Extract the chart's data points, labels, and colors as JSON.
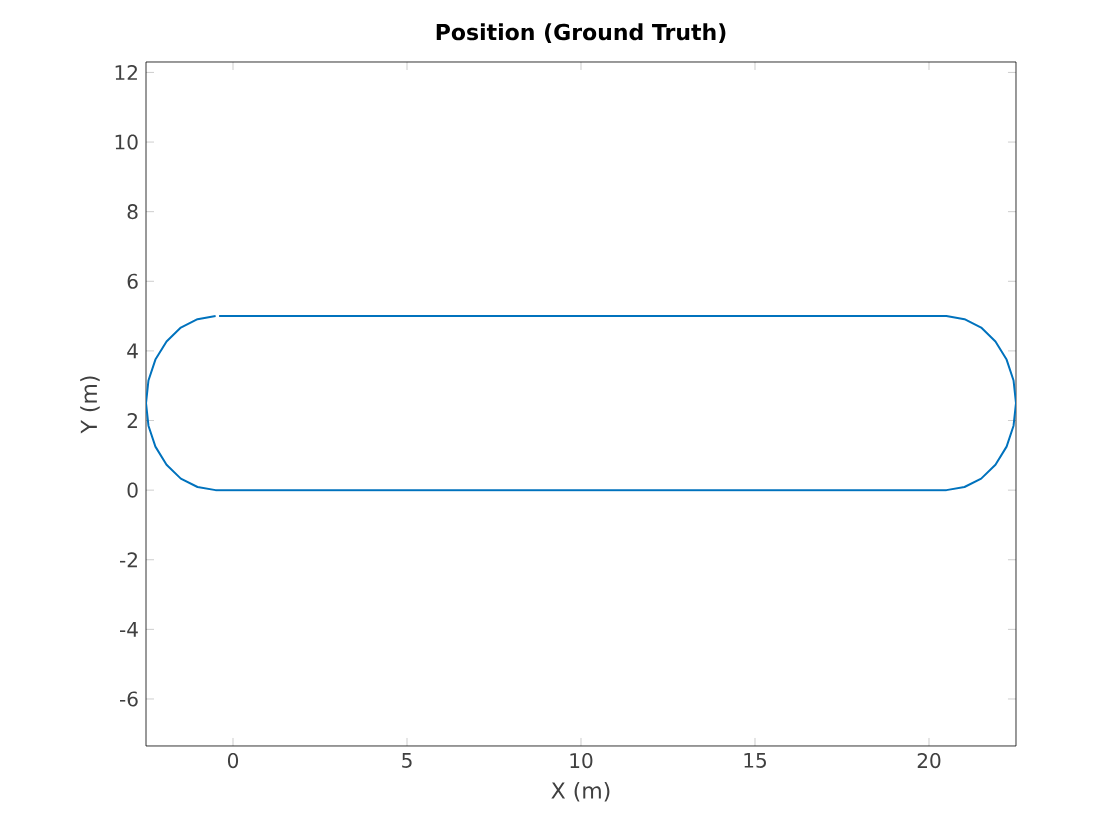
{
  "chart_data": {
    "type": "line",
    "title": "Position (Ground Truth)",
    "xlabel": "X (m)",
    "ylabel": "Y (m)",
    "xlim": [
      -2.5,
      22.5
    ],
    "ylim": [
      -7.35,
      12.3
    ],
    "xticks": [
      0,
      5,
      10,
      15,
      20
    ],
    "yticks": [
      -6,
      -4,
      -2,
      0,
      2,
      4,
      6,
      8,
      10,
      12
    ],
    "grid": false,
    "marker": "none",
    "line_style": "solid",
    "series": [
      {
        "color": "#0072bd",
        "x": [
          -0.4,
          20.5,
          21.02,
          21.5,
          21.91,
          22.23,
          22.43,
          22.5,
          22.43,
          22.23,
          21.91,
          21.5,
          21.02,
          20.5,
          -0.5,
          -1.02,
          -1.5,
          -1.91,
          -2.23,
          -2.43,
          -2.5,
          -2.43,
          -2.23,
          -1.91,
          -1.5,
          -1.02,
          -0.5
        ],
        "values": [
          5,
          5,
          4.91,
          4.67,
          4.27,
          3.75,
          3.15,
          2.5,
          1.85,
          1.25,
          0.73,
          0.33,
          0.09,
          0,
          0,
          0.09,
          0.33,
          0.73,
          1.25,
          1.85,
          2.5,
          3.15,
          3.75,
          4.27,
          4.67,
          4.91,
          5
        ]
      }
    ]
  }
}
